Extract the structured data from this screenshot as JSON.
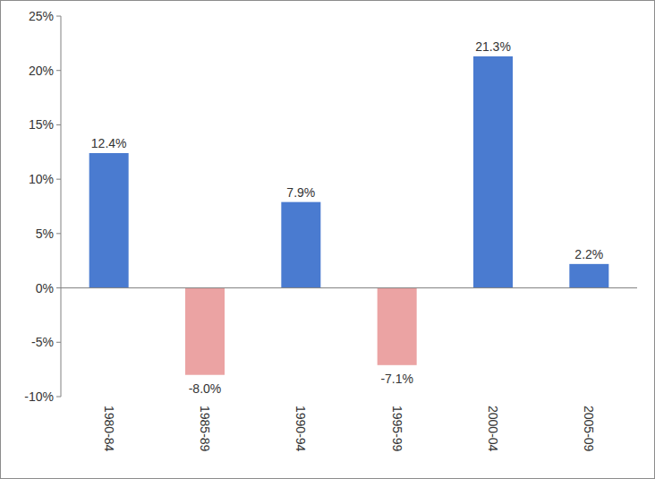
{
  "chart_data": {
    "type": "bar",
    "categories": [
      "1980-84",
      "1985-89",
      "1990-94",
      "1995-99",
      "2000-04",
      "2005-09"
    ],
    "values": [
      12.4,
      -8.0,
      7.9,
      -7.1,
      21.3,
      2.2
    ],
    "value_labels": [
      "12.4%",
      "-8.0%",
      "7.9%",
      "-7.1%",
      "21.3%",
      "2.2%"
    ],
    "colors": [
      "#4a7bd0",
      "#eba3a3",
      "#4a7bd0",
      "#eba3a3",
      "#4a7bd0",
      "#4a7bd0"
    ],
    "ylim": [
      -10,
      25
    ],
    "yticks": [
      {
        "value": -10,
        "label": "-10%"
      },
      {
        "value": -5,
        "label": "-5%"
      },
      {
        "value": 0,
        "label": "0%"
      },
      {
        "value": 5,
        "label": "5%"
      },
      {
        "value": 10,
        "label": "10%"
      },
      {
        "value": 15,
        "label": "15%"
      },
      {
        "value": 20,
        "label": "20%"
      },
      {
        "value": 25,
        "label": "25%"
      }
    ],
    "grid": false,
    "data_labels": true
  }
}
